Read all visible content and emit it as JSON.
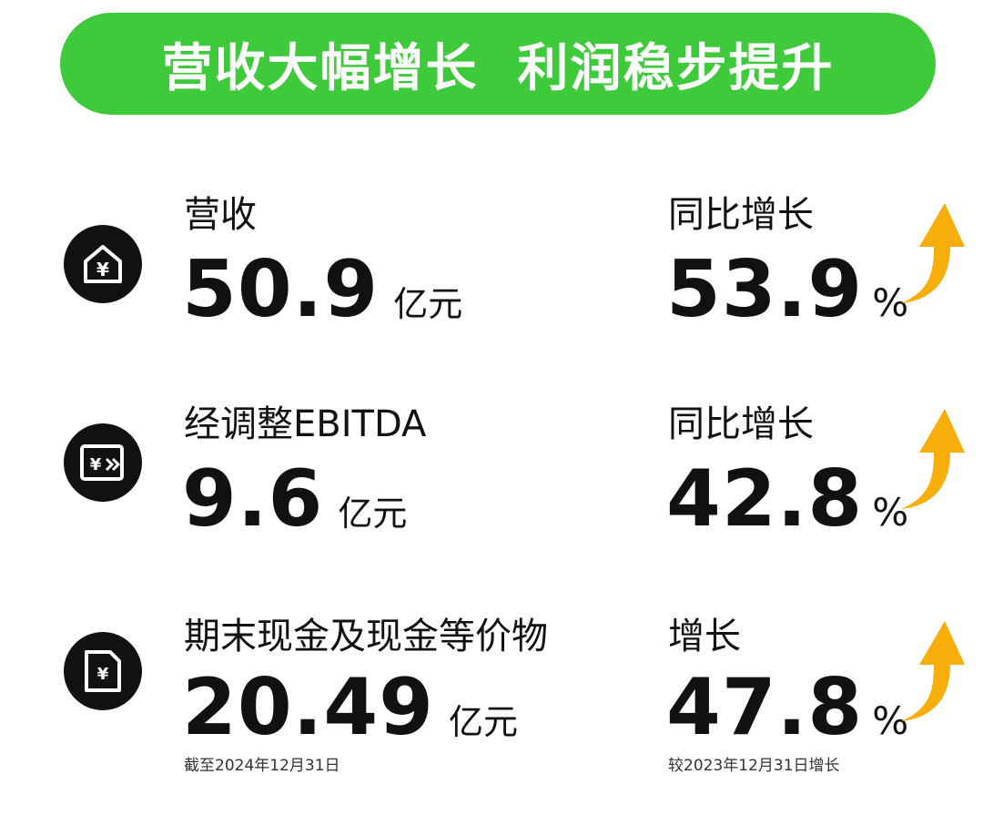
{
  "banner": {
    "title": "营收大幅增长  利润稳步提升"
  },
  "colors": {
    "banner_green": "#3fca3b",
    "icon_bg": "#111111",
    "arrow_orange": "#f7ae0a"
  },
  "metrics": [
    {
      "icon": "house-yen-icon",
      "label": "营收",
      "value": "50.9",
      "unit": "亿元",
      "growth_label": "同比增长",
      "growth_value": "53.9",
      "growth_unit": "%"
    },
    {
      "icon": "card-yen-arrow-icon",
      "label": "经调整EBITDA",
      "value": "9.6",
      "unit": "亿元",
      "growth_label": "同比增长",
      "growth_value": "42.8",
      "growth_unit": "%"
    },
    {
      "icon": "sim-card-yen-icon",
      "label": "期末现金及现金等价物",
      "value": "20.49",
      "unit": "亿元",
      "growth_label": "增长",
      "growth_value": "47.8",
      "growth_unit": "%",
      "note_left": "截至2024年12月31日",
      "note_right": "较2023年12月31日增长"
    }
  ]
}
